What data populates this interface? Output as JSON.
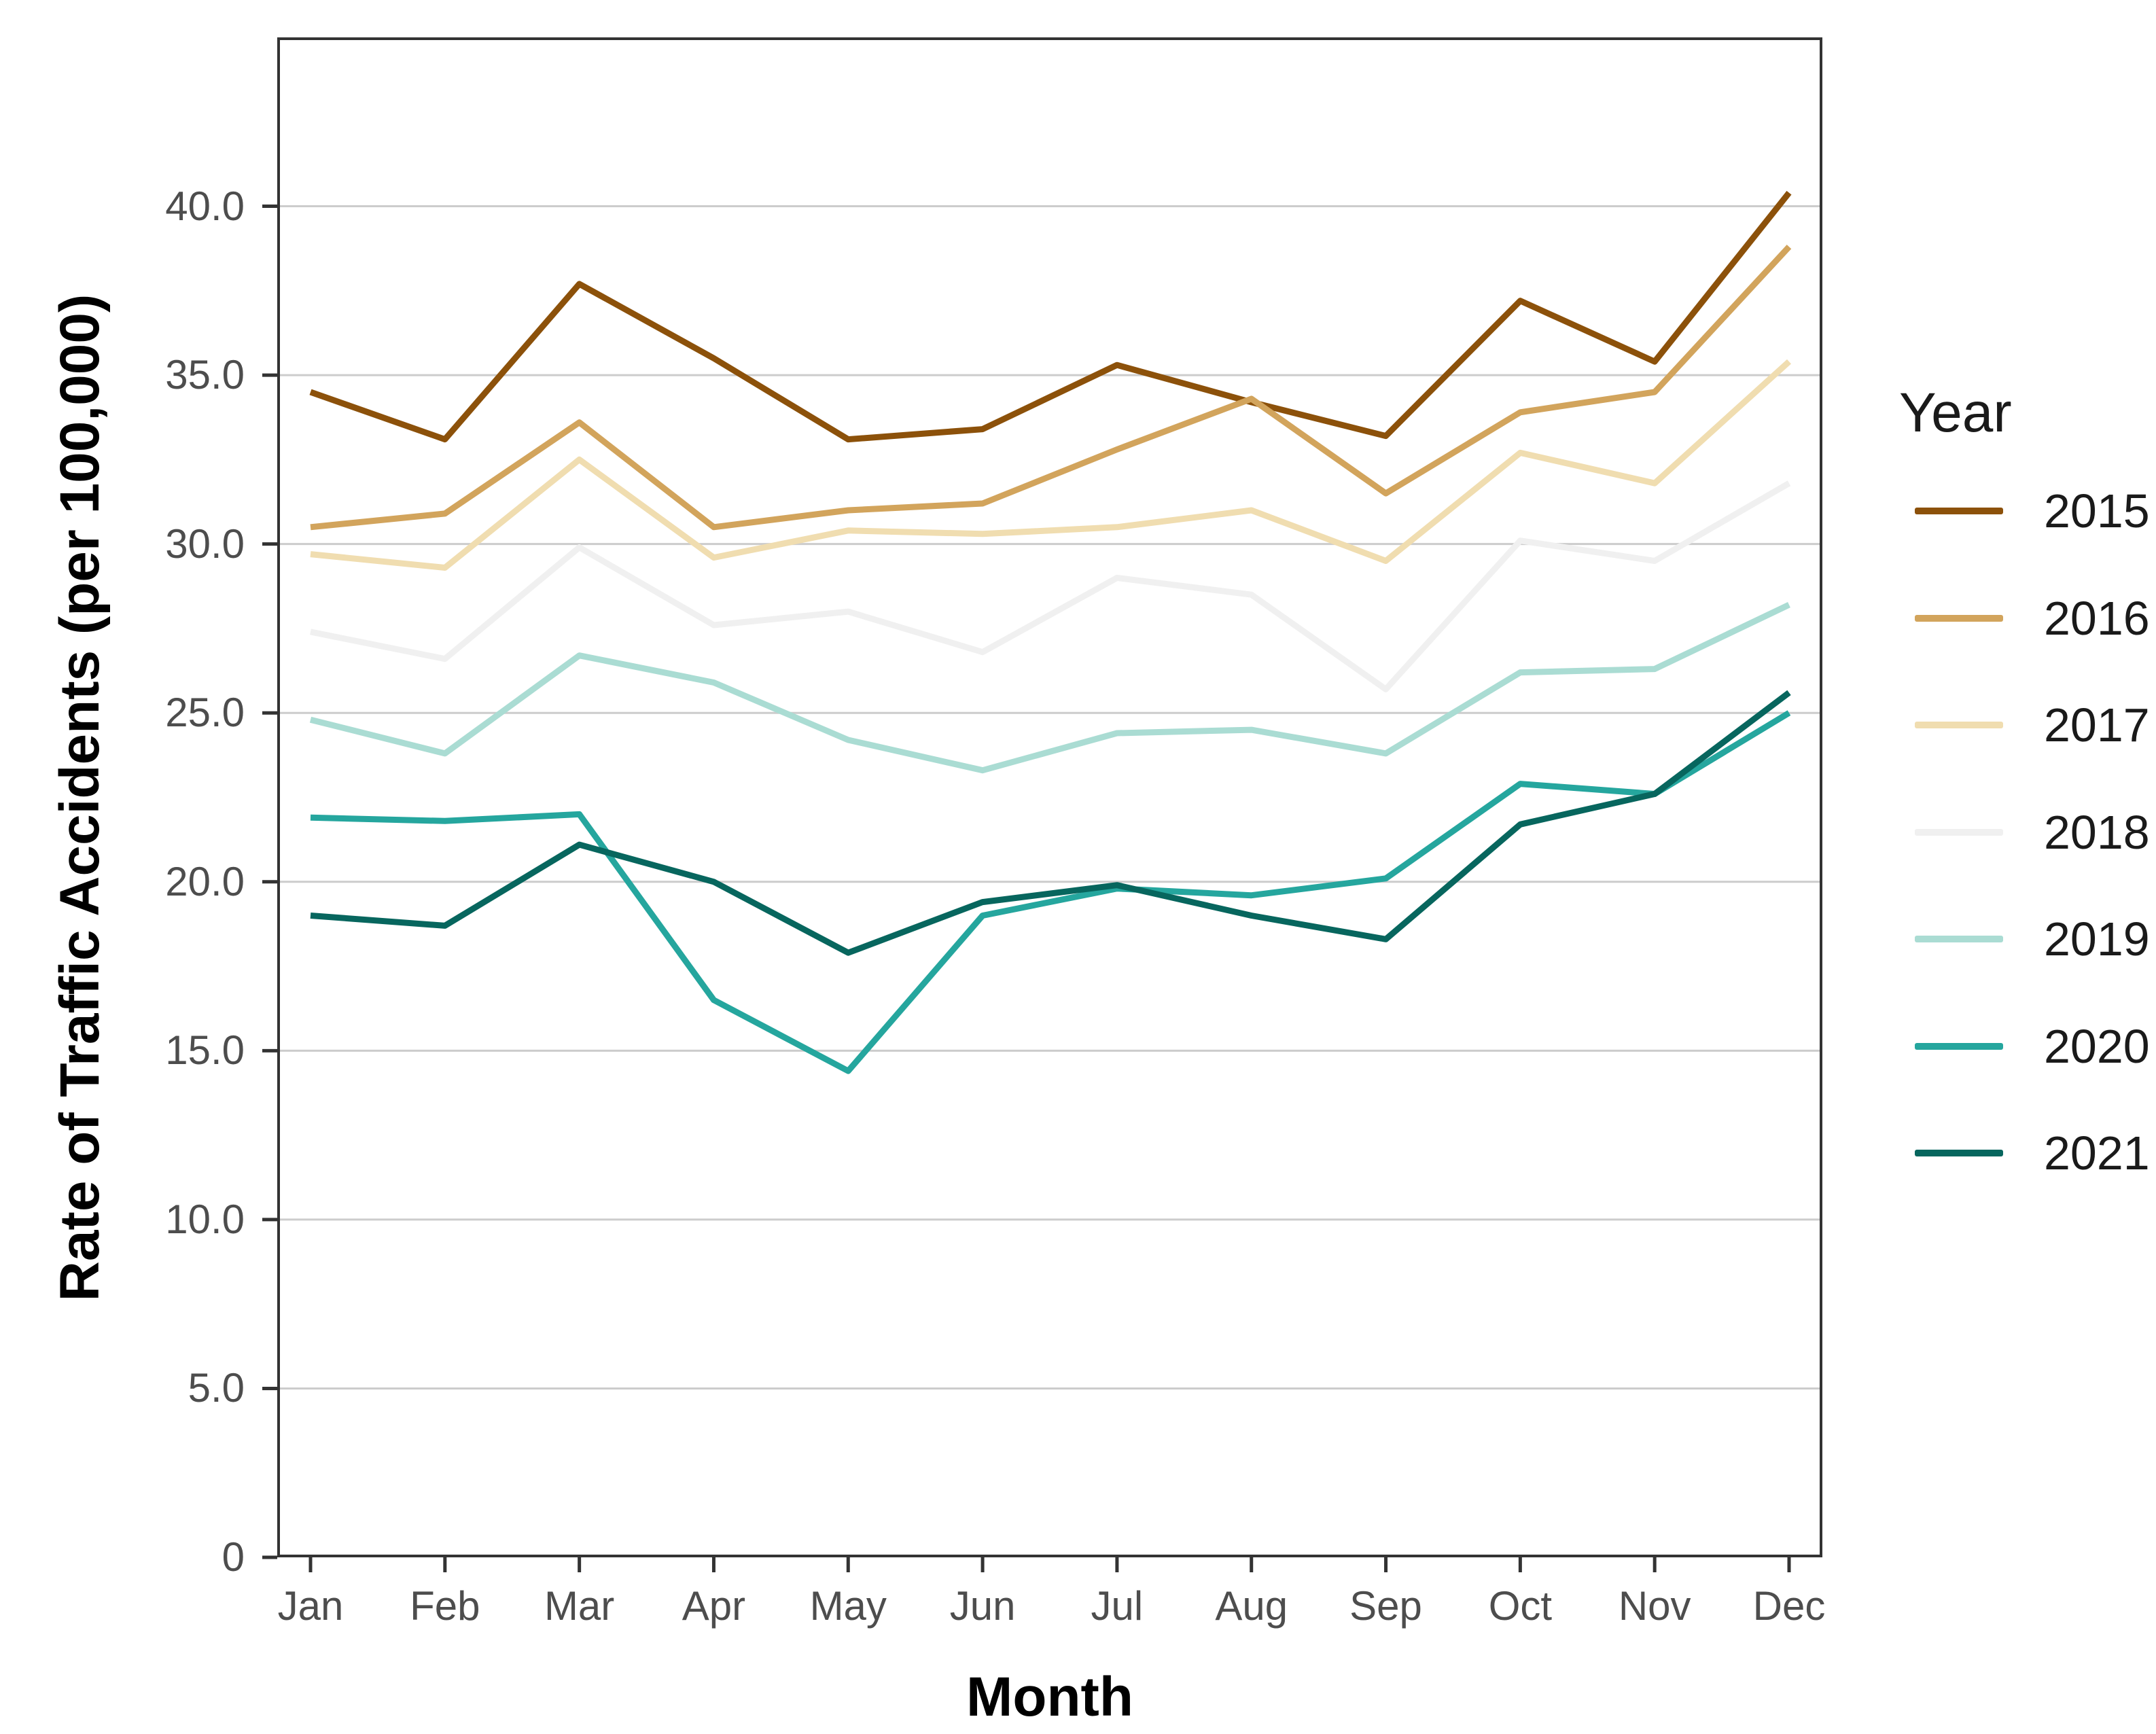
{
  "chart_data": {
    "type": "line",
    "title": "",
    "xlabel": "Month",
    "ylabel": "Rate of Traffic Accidents (per 100,000)",
    "categories": [
      "Jan",
      "Feb",
      "Mar",
      "Apr",
      "May",
      "Jun",
      "Jul",
      "Aug",
      "Sep",
      "Oct",
      "Nov",
      "Dec"
    ],
    "y_ticks": [
      0,
      5,
      10,
      15,
      20,
      25,
      30,
      35,
      40
    ],
    "y_tick_labels": [
      "0",
      "5.0",
      "10.0",
      "15.0",
      "20.0",
      "25.0",
      "30.0",
      "35.0",
      "40.0"
    ],
    "ylim": [
      0,
      45
    ],
    "grid": "horizontal-major-only",
    "legend_position": "right",
    "legend_title": "Year",
    "series": [
      {
        "name": "2015",
        "color": "#8c510a",
        "values": [
          34.5,
          33.1,
          37.7,
          35.5,
          33.1,
          33.4,
          35.3,
          34.2,
          33.2,
          37.2,
          35.4,
          40.4
        ]
      },
      {
        "name": "2016",
        "color": "#d2a45c",
        "values": [
          30.5,
          30.9,
          33.6,
          30.5,
          31.0,
          31.2,
          32.8,
          34.3,
          31.5,
          33.9,
          34.5,
          38.8
        ]
      },
      {
        "name": "2017",
        "color": "#f0ddb0",
        "values": [
          29.7,
          29.3,
          32.5,
          29.6,
          30.4,
          30.3,
          30.5,
          31.0,
          29.5,
          32.7,
          31.8,
          35.4
        ]
      },
      {
        "name": "2018",
        "color": "#f0f0f0",
        "values": [
          27.4,
          26.6,
          29.9,
          27.6,
          28.0,
          26.8,
          29.0,
          28.5,
          25.7,
          30.1,
          29.5,
          31.8
        ]
      },
      {
        "name": "2019",
        "color": "#aadcd3",
        "values": [
          24.8,
          23.8,
          26.7,
          25.9,
          24.2,
          23.3,
          24.4,
          24.5,
          23.8,
          26.2,
          26.3,
          28.2
        ]
      },
      {
        "name": "2020",
        "color": "#25a69e",
        "values": [
          21.9,
          21.8,
          22.0,
          16.5,
          14.4,
          19.0,
          19.8,
          19.6,
          20.1,
          22.9,
          22.6,
          25.0
        ]
      },
      {
        "name": "2021",
        "color": "#07665e",
        "values": [
          19.0,
          18.7,
          21.1,
          20.0,
          17.9,
          19.4,
          19.9,
          19.0,
          18.3,
          21.7,
          22.6,
          25.6
        ]
      }
    ]
  },
  "colors": {
    "background": "#ffffff",
    "panel_border": "#333333",
    "gridline": "#cccccc",
    "tick_mark": "#333333",
    "tick_label": "#4d4d4d",
    "axis_title": "#000000",
    "legend_text": "#1a1a1a"
  }
}
